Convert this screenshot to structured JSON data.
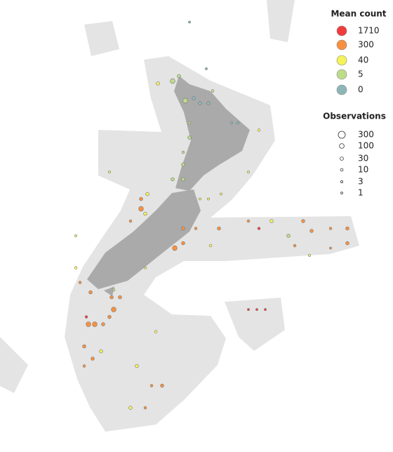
{
  "map": {
    "type": "bubble-map",
    "legend_color": {
      "title": "Mean count",
      "levels": [
        {
          "value": 1710,
          "color": "#f03c3c"
        },
        {
          "value": 300,
          "color": "#f8913f"
        },
        {
          "value": 40,
          "color": "#f5f25a"
        },
        {
          "value": 5,
          "color": "#bedc8a"
        },
        {
          "value": 0,
          "color": "#8db7b7"
        }
      ]
    },
    "legend_size": {
      "title": "Observations",
      "values": [
        300,
        100,
        30,
        10,
        3,
        1
      ]
    },
    "points": {
      "lon": [
        170.5,
        171.2,
        171.5,
        171.8,
        172.2,
        172.5,
        172.9,
        172.8,
        173.1,
        174.3,
        174.0,
        172.0,
        172.0,
        175.3,
        171.7,
        171.7,
        171.7,
        171.2,
        168.2,
        170.0,
        169.7,
        169.7,
        169.9,
        172.5,
        172.9,
        173.5,
        174.8,
        169.2,
        171.7,
        172.3,
        173.4,
        174.8,
        175.3,
        175.9,
        176.7,
        177.4,
        177.8,
        178.7,
        179.5,
        179.5,
        171.7,
        171.3,
        173.0,
        177.0,
        178.7,
        177.7,
        166.6,
        166.6,
        174.8,
        175.2,
        175.6,
        166.8,
        167.3,
        168.3,
        168.7,
        168.4,
        168.2,
        167.2,
        167.5,
        167.9,
        167.1,
        167.0,
        167.4,
        167.0,
        167.8,
        168.4,
        169.9,
        169.5,
        170.2,
        170.7,
        169.2,
        169.9,
        170.4,
        172.0
      ],
      "lat": [
        -36.4,
        -36.3,
        -36.1,
        -37.1,
        -37.0,
        -37.2,
        -37.2,
        -35.8,
        -36.7,
        -38.0,
        -38.0,
        -38.0,
        -38.6,
        -38.3,
        -39.2,
        -39.7,
        -40.3,
        -40.3,
        -40.0,
        -40.9,
        -41.1,
        -41.5,
        -41.7,
        -41.1,
        -41.1,
        -40.9,
        -40.0,
        -42.0,
        -42.3,
        -42.3,
        -42.3,
        -42.0,
        -42.3,
        -42.0,
        -42.6,
        -42.0,
        -42.4,
        -42.3,
        -42.9,
        -42.3,
        -42.9,
        -43.1,
        -43.0,
        -43.0,
        -43.1,
        -43.4,
        -42.6,
        -43.9,
        -45.6,
        -45.6,
        -45.6,
        -44.5,
        -44.9,
        -45.1,
        -45.1,
        -45.6,
        -45.9,
        -46.2,
        -46.2,
        -46.2,
        -45.9,
        -47.1,
        -47.6,
        -47.9,
        -47.3,
        -44.8,
        -43.9,
        -47.9,
        -48.7,
        -48.7,
        -49.6,
        -49.6,
        -46.5,
        -33.9
      ],
      "mean": [
        40,
        5,
        8,
        5,
        3,
        0,
        0,
        0,
        5,
        3,
        1,
        20,
        30,
        40,
        8,
        10,
        30,
        15,
        40,
        100,
        300,
        300,
        200,
        40,
        40,
        40,
        50,
        300,
        300,
        300,
        300,
        400,
        1710,
        40,
        5,
        300,
        400,
        300,
        1000,
        300,
        300,
        300,
        250,
        300,
        300,
        40,
        40,
        40,
        1710,
        1710,
        1710,
        300,
        400,
        300,
        300,
        300,
        1000,
        400,
        300,
        300,
        1710,
        300,
        300,
        300,
        40,
        5,
        40,
        40,
        300,
        300,
        40,
        300,
        40,
        0
      ],
      "observations": [
        30,
        100,
        30,
        100,
        30,
        30,
        30,
        3,
        10,
        10,
        10,
        10,
        30,
        10,
        10,
        30,
        30,
        30,
        3,
        30,
        30,
        100,
        30,
        3,
        3,
        3,
        3,
        10,
        30,
        10,
        30,
        10,
        10,
        30,
        30,
        30,
        30,
        10,
        30,
        30,
        30,
        100,
        10,
        10,
        3,
        3,
        3,
        10,
        3,
        3,
        3,
        10,
        30,
        30,
        30,
        100,
        30,
        100,
        100,
        30,
        10,
        30,
        30,
        10,
        30,
        10,
        3,
        30,
        10,
        30,
        30,
        10,
        10,
        3
      ]
    }
  }
}
